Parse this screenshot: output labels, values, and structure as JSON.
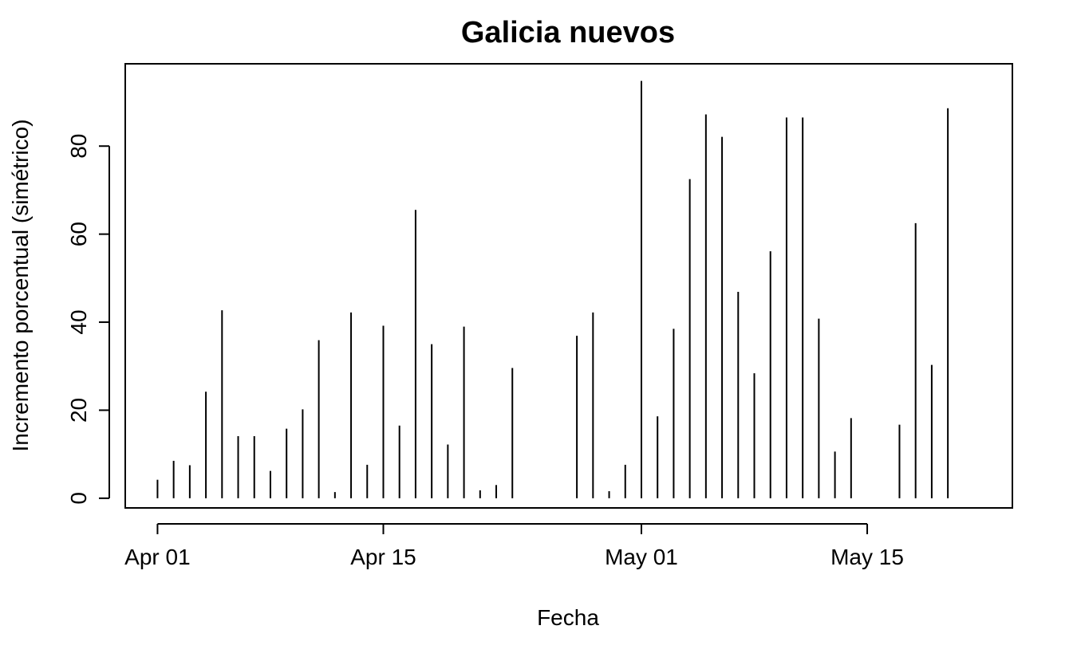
{
  "chart_data": {
    "type": "bar",
    "style": "vertical-lines",
    "title": "Galicia nuevos",
    "xlabel": "Fecha",
    "ylabel": "Incremento porcentual (simétrico)",
    "x_ticks": [
      {
        "label": "Apr 01",
        "date": "2020-04-01"
      },
      {
        "label": "Apr 15",
        "date": "2020-04-15"
      },
      {
        "label": "May 01",
        "date": "2020-05-01"
      },
      {
        "label": "May 15",
        "date": "2020-05-15"
      }
    ],
    "y_ticks": [
      0,
      20,
      40,
      60,
      80
    ],
    "xlim": [
      "2020-03-30",
      "2020-05-24"
    ],
    "ylim": [
      -2.2,
      98.7
    ],
    "grid": false,
    "legend": "none",
    "x": [
      "2020-04-01",
      "2020-04-02",
      "2020-04-03",
      "2020-04-04",
      "2020-04-05",
      "2020-04-06",
      "2020-04-07",
      "2020-04-08",
      "2020-04-09",
      "2020-04-10",
      "2020-04-11",
      "2020-04-12",
      "2020-04-13",
      "2020-04-14",
      "2020-04-15",
      "2020-04-16",
      "2020-04-17",
      "2020-04-18",
      "2020-04-19",
      "2020-04-20",
      "2020-04-21",
      "2020-04-22",
      "2020-04-23",
      "2020-04-24",
      "2020-04-25",
      "2020-04-26",
      "2020-04-27",
      "2020-04-28",
      "2020-04-29",
      "2020-04-30",
      "2020-05-01",
      "2020-05-02",
      "2020-05-03",
      "2020-05-04",
      "2020-05-05",
      "2020-05-06",
      "2020-05-07",
      "2020-05-08",
      "2020-05-09",
      "2020-05-10",
      "2020-05-11",
      "2020-05-12",
      "2020-05-13",
      "2020-05-14",
      "2020-05-15",
      "2020-05-16",
      "2020-05-17",
      "2020-05-18",
      "2020-05-19",
      "2020-05-20"
    ],
    "values": [
      4.2,
      8.5,
      7.5,
      24.2,
      42.7,
      14.1,
      14.1,
      6.2,
      15.8,
      20.2,
      35.9,
      1.4,
      42.2,
      7.6,
      39.2,
      16.5,
      65.5,
      35.0,
      12.2,
      39.0,
      1.8,
      3.0,
      29.6,
      0,
      0,
      0,
      36.9,
      42.2,
      1.6,
      7.6,
      94.8,
      18.6,
      38.5,
      72.5,
      87.2,
      82.1,
      46.9,
      28.4,
      56.1,
      86.5,
      86.5,
      40.8,
      10.6,
      18.2,
      0,
      0,
      16.7,
      62.5,
      30.3,
      88.6
    ],
    "colors": {
      "line": "#000000",
      "axis": "#000000",
      "background": "#ffffff"
    }
  }
}
